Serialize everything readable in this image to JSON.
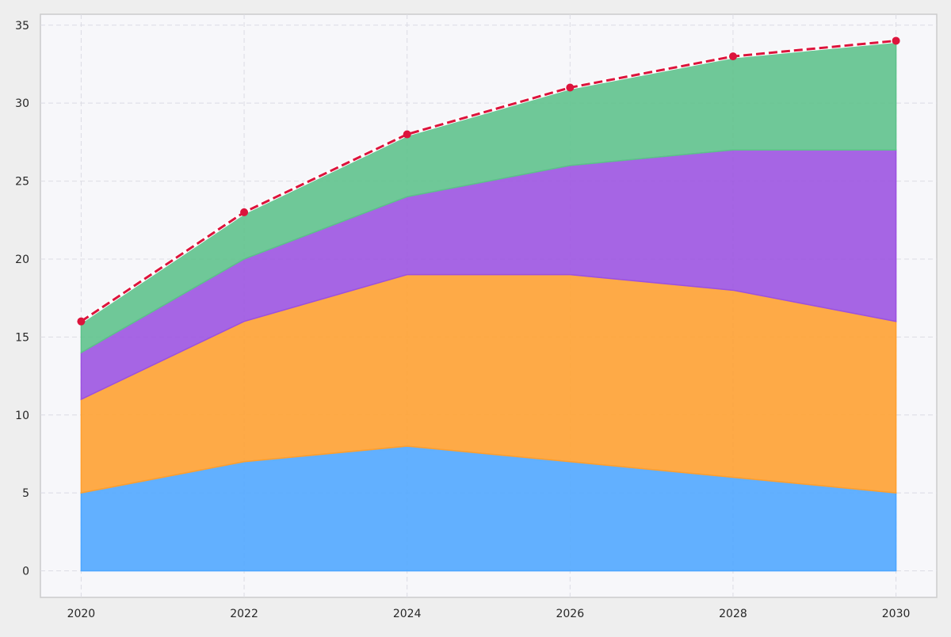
{
  "chart_data": {
    "type": "area",
    "stacked": true,
    "x": [
      2020,
      2022,
      2024,
      2026,
      2028,
      2030
    ],
    "x_ticks": [
      "2020",
      "2022",
      "2024",
      "2026",
      "2028",
      "2030"
    ],
    "y_ticks": [
      "0",
      "5",
      "10",
      "15",
      "20",
      "25",
      "30",
      "35"
    ],
    "xlim": [
      2019.5,
      2030.5
    ],
    "ylim": [
      -1.7,
      35.7
    ],
    "grid": true,
    "title": "",
    "xlabel": "",
    "ylabel": "",
    "series": [
      {
        "values": [
          5,
          7,
          8,
          7,
          6,
          5
        ],
        "color": "#4da6ff"
      },
      {
        "values": [
          6,
          9,
          11,
          12,
          12,
          11
        ],
        "color": "#ff9f2e"
      },
      {
        "values": [
          3,
          4,
          5,
          7,
          9,
          11
        ],
        "color": "#9b51e0"
      },
      {
        "values": [
          2,
          3,
          4,
          5,
          6,
          7
        ],
        "color": "#5cc28a"
      }
    ],
    "total_line": {
      "values": [
        16,
        23,
        28,
        31,
        33,
        34
      ],
      "color": "#dc143c",
      "style": "dashed",
      "markers": true
    },
    "colors": {
      "plot_background": "#f7f7fa",
      "page_background": "#eeeeee",
      "grid": "#dcdce4",
      "frame": "#cccccc"
    }
  }
}
